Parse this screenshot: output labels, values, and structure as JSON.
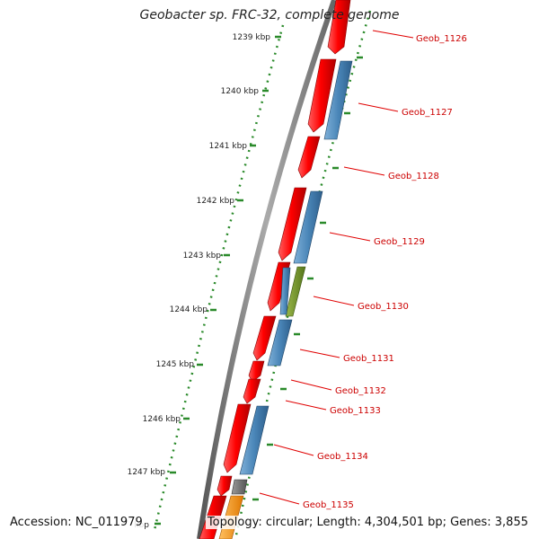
{
  "header": {
    "title": "Geobacter sp. FRC-32, complete genome"
  },
  "footer": {
    "accession": "Accession: NC_011979",
    "summary": "Topology: circular; Length: 4,304,501 bp; Genes: 3,855"
  },
  "ruler": {
    "ticks": [
      "1239 kbp",
      "1240 kbp",
      "1241 kbp",
      "1242 kbp",
      "1243 kbp",
      "1244 kbp",
      "1245 kbp",
      "1246 kbp",
      "1247 kbp",
      "kbp"
    ]
  },
  "genes": {
    "labels": [
      "Geob_1126",
      "Geob_1127",
      "Geob_1128",
      "Geob_1129",
      "Geob_1130",
      "Geob_1131",
      "Geob_1132",
      "Geob_1133",
      "Geob_1134",
      "Geob_1135"
    ]
  },
  "colors": {
    "cds_forward": "#ff0000",
    "cds_reverse": "#4a86b8",
    "rna": "#6b8e23",
    "other": "#777777",
    "highlight": "#ff9900",
    "backbone": "#8a8a8a",
    "tick": "#2a8a2a",
    "label": "#cc0000"
  }
}
